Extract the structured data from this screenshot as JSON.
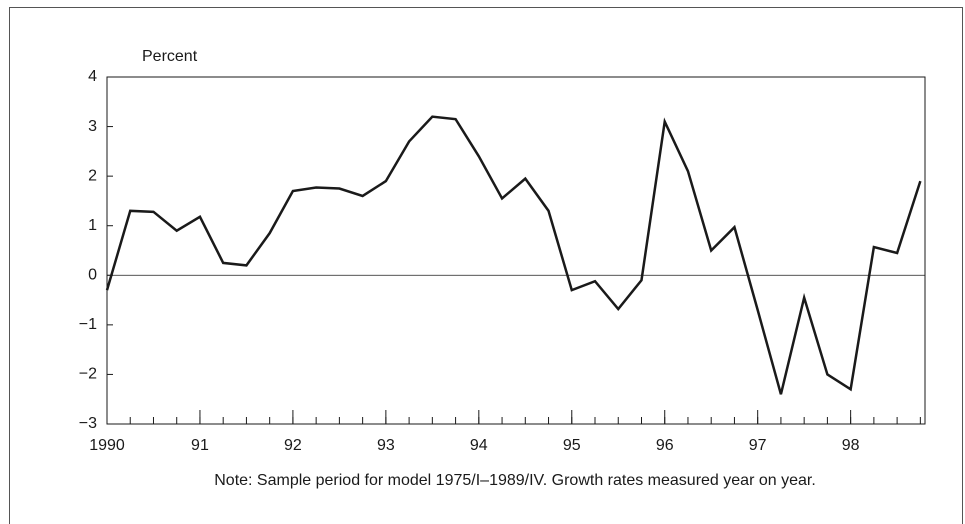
{
  "chart_data": {
    "type": "line",
    "y_label": "Percent",
    "note": "Note: Sample period for model 1975/I–1989/IV. Growth rates measured year on year.",
    "x": [
      1990,
      1990.25,
      1990.5,
      1990.75,
      1991,
      1991.25,
      1991.5,
      1991.75,
      1992,
      1992.25,
      1992.5,
      1992.75,
      1993,
      1993.25,
      1993.5,
      1993.75,
      1994,
      1994.25,
      1994.5,
      1994.75,
      1995,
      1995.25,
      1995.5,
      1995.75,
      1996,
      1996.25,
      1996.5,
      1996.75,
      1997,
      1997.25,
      1997.5,
      1997.75,
      1998,
      1998.25,
      1998.5,
      1998.75
    ],
    "series": [
      {
        "color": "#1a1a1a",
        "values": [
          -0.3,
          1.3,
          1.28,
          0.9,
          1.18,
          0.25,
          0.2,
          0.85,
          1.7,
          1.77,
          1.75,
          1.6,
          1.9,
          2.7,
          3.2,
          3.15,
          2.4,
          1.55,
          1.95,
          1.3,
          -0.3,
          -0.12,
          -0.68,
          -0.1,
          3.1,
          2.1,
          0.5,
          0.97,
          -0.7,
          -2.4,
          -0.45,
          -2.0,
          -2.3,
          0.57,
          0.45,
          1.9
        ]
      }
    ],
    "xlim": [
      1990,
      1998.8
    ],
    "xticks": [
      {
        "value": 1990,
        "label": "1990"
      },
      {
        "value": 1991,
        "label": "91"
      },
      {
        "value": 1992,
        "label": "92"
      },
      {
        "value": 1993,
        "label": "93"
      },
      {
        "value": 1994,
        "label": "94"
      },
      {
        "value": 1995,
        "label": "95"
      },
      {
        "value": 1996,
        "label": "96"
      },
      {
        "value": 1997,
        "label": "97"
      },
      {
        "value": 1998,
        "label": "98"
      }
    ],
    "ylim": [
      -3,
      4
    ],
    "yticks": [
      {
        "value": -3,
        "label": "−3"
      },
      {
        "value": -2,
        "label": "−2"
      },
      {
        "value": -1,
        "label": "−1"
      },
      0,
      1,
      2,
      3,
      4
    ]
  }
}
